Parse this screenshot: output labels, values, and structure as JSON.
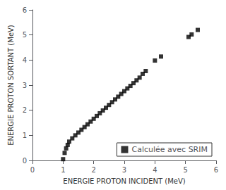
{
  "chart_data": {
    "type": "scatter",
    "xlabel": "ENERGIE PROTON INCIDENT (MeV)",
    "ylabel": "ENERGIE PROTON SORTANT (MeV)",
    "x": [
      1.0,
      1.05,
      1.1,
      1.15,
      1.2,
      1.3,
      1.4,
      1.5,
      1.6,
      1.7,
      1.8,
      1.9,
      2.0,
      2.1,
      2.2,
      2.3,
      2.4,
      2.5,
      2.6,
      2.7,
      2.8,
      2.9,
      3.0,
      3.1,
      3.2,
      3.3,
      3.4,
      3.5,
      3.6,
      3.7,
      4.0,
      4.2,
      5.1,
      5.2,
      5.4
    ],
    "series": [
      {
        "name": "Calculée avec SRIM",
        "color": "black",
        "marker": "square",
        "values": [
          0.05,
          0.3,
          0.48,
          0.62,
          0.75,
          0.88,
          1.0,
          1.11,
          1.22,
          1.33,
          1.44,
          1.55,
          1.66,
          1.77,
          1.88,
          1.99,
          2.1,
          2.21,
          2.32,
          2.43,
          2.54,
          2.65,
          2.76,
          2.87,
          2.97,
          3.08,
          3.19,
          3.3,
          3.45,
          3.56,
          3.98,
          4.14,
          4.92,
          5.02,
          5.2
        ]
      }
    ],
    "xlim": [
      0,
      6
    ],
    "ylim": [
      0,
      6
    ],
    "xticks": [
      0,
      1,
      2,
      3,
      4,
      5,
      6
    ],
    "yticks": [
      0,
      1,
      2,
      3,
      4,
      5,
      6
    ],
    "grid": false,
    "legend": "lower right"
  }
}
